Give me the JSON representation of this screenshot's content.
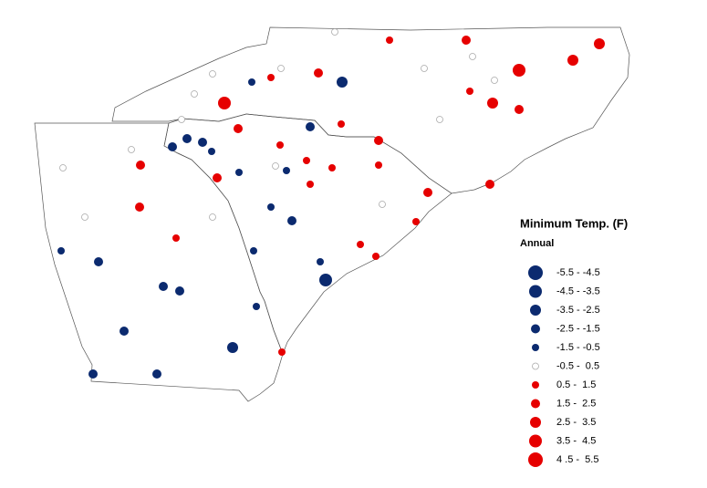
{
  "legend": {
    "title": "Minimum Temp. (F)",
    "subtitle": "Annual",
    "classes": [
      {
        "label": "-5.5 - -4.5",
        "color": "#0b2a6f"
      },
      {
        "label": "-4.5 - -3.5",
        "color": "#0b2a6f"
      },
      {
        "label": "-3.5 - -2.5",
        "color": "#0b2a6f"
      },
      {
        "label": "-2.5 - -1.5",
        "color": "#0b2a6f"
      },
      {
        "label": "-1.5 - -0.5",
        "color": "#0b2a6f"
      },
      {
        "label": "-0.5 -  0.5",
        "color": "#ffffff"
      },
      {
        "label": "0.5 -  1.5",
        "color": "#e60000"
      },
      {
        "label": "1.5 -  2.5",
        "color": "#e60000"
      },
      {
        "label": "2.5 -  3.5",
        "color": "#e60000"
      },
      {
        "label": "3.5 -  4.5",
        "color": "#e60000"
      },
      {
        "label": "4 .5 -  5.5",
        "color": "#e60000"
      }
    ]
  }
}
